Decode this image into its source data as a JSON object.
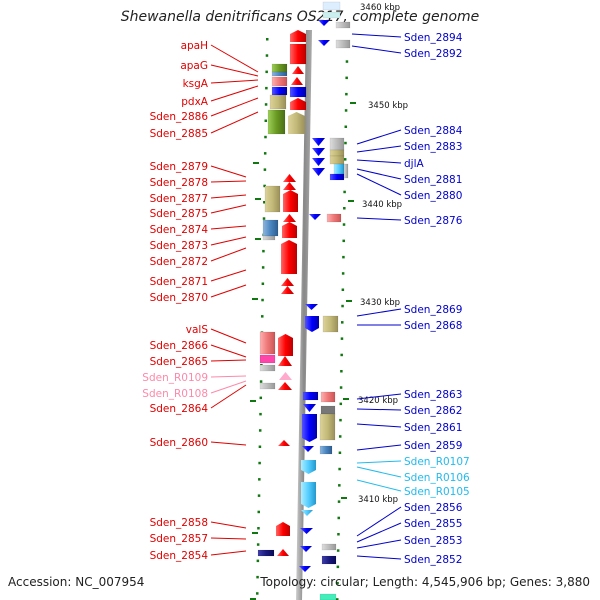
{
  "title": "Shewanella denitrificans OS217, complete genome",
  "accession": "Accession: NC_007954",
  "topology": "Topology: circular; Length: 4,545,906 bp; Genes: 3,880",
  "scale_labels": [
    "3460 kbp",
    "3450 kbp",
    "3440 kbp",
    "3430 kbp",
    "3420 kbp",
    "3410 kbp"
  ],
  "colors": {
    "left_label": "#e00000",
    "left_rna_label": "#ff88aa",
    "right_label": "#0000cc",
    "right_rna_label": "#22bbee",
    "backbone": "#888888",
    "tick": "#117711"
  },
  "left_genes": [
    "apaH",
    "apaG",
    "ksgA",
    "pdxA",
    "Sden_2886",
    "Sden_2885",
    "Sden_2879",
    "Sden_2878",
    "Sden_2877",
    "Sden_2875",
    "Sden_2874",
    "Sden_2873",
    "Sden_2872",
    "Sden_2871",
    "Sden_2870",
    "valS",
    "Sden_2866",
    "Sden_2865",
    "Sden_R0109",
    "Sden_R0108",
    "Sden_2864",
    "Sden_2860",
    "Sden_2858",
    "Sden_2857",
    "Sden_2854"
  ],
  "right_genes": [
    "Sden_2894",
    "Sden_2892",
    "Sden_2884",
    "Sden_2883",
    "djlA",
    "Sden_2881",
    "Sden_2880",
    "Sden_2876",
    "Sden_2869",
    "Sden_2868",
    "Sden_2863",
    "Sden_2862",
    "Sden_2861",
    "Sden_2859",
    "Sden_R0107",
    "Sden_R0106",
    "Sden_R0105",
    "Sden_2856",
    "Sden_2855",
    "Sden_2853",
    "Sden_2852"
  ]
}
